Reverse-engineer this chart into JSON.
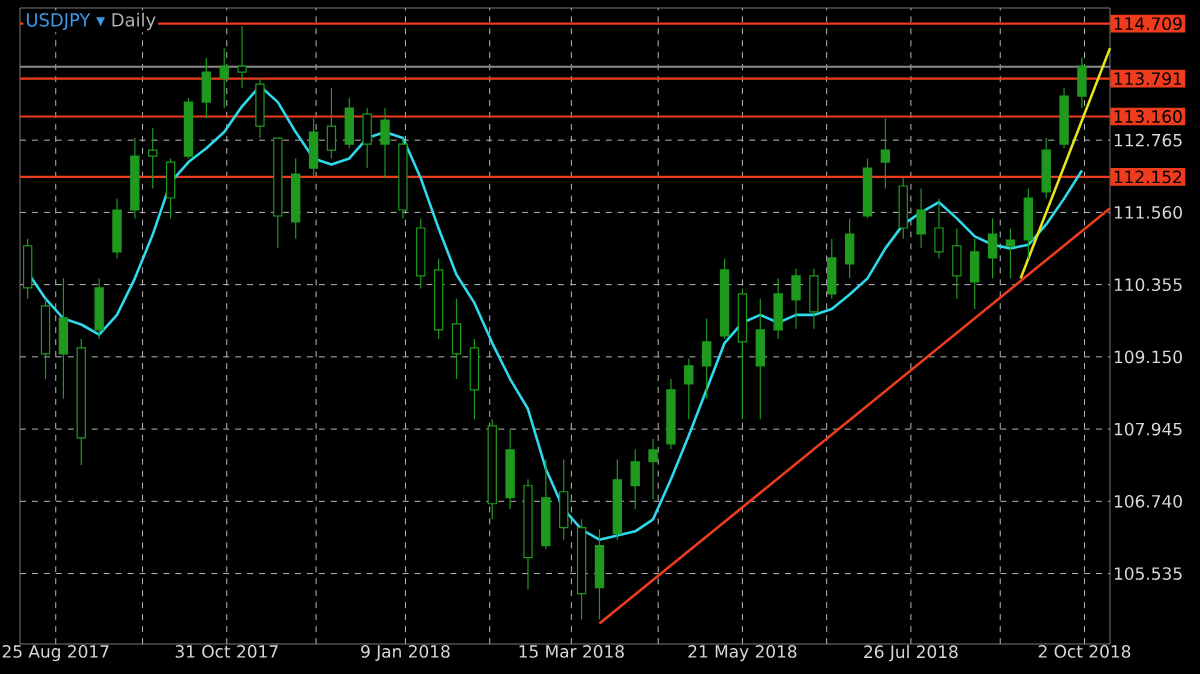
{
  "chart_data": {
    "type": "candlestick",
    "title": "USDJPY ▾",
    "subtitle": "Daily",
    "color": "#1f9a1f",
    "x": [
      "2017-08-14",
      "2017-08-21",
      "2017-08-28",
      "2017-09-04",
      "2017-09-11",
      "2017-09-18",
      "2017-09-25",
      "2017-10-02",
      "2017-10-09",
      "2017-10-16",
      "2017-10-23",
      "2017-10-30",
      "2017-11-06",
      "2017-11-13",
      "2017-11-20",
      "2017-11-27",
      "2017-12-04",
      "2017-12-11",
      "2017-12-18",
      "2017-12-25",
      "2018-01-01",
      "2018-01-08",
      "2018-01-15",
      "2018-01-22",
      "2018-01-29",
      "2018-02-05",
      "2018-02-12",
      "2018-02-19",
      "2018-02-26",
      "2018-03-05",
      "2018-03-12",
      "2018-03-19",
      "2018-03-26",
      "2018-04-02",
      "2018-04-09",
      "2018-04-16",
      "2018-04-23",
      "2018-04-30",
      "2018-05-07",
      "2018-05-14",
      "2018-05-21",
      "2018-05-28",
      "2018-06-04",
      "2018-06-11",
      "2018-06-18",
      "2018-06-25",
      "2018-07-02",
      "2018-07-09",
      "2018-07-16",
      "2018-07-23",
      "2018-07-30",
      "2018-08-06",
      "2018-08-13",
      "2018-08-20",
      "2018-08-27",
      "2018-09-03",
      "2018-09-10",
      "2018-09-17",
      "2018-09-24",
      "2018-10-01"
    ],
    "ohlc": [
      [
        111.0,
        111.12,
        110.12,
        110.3
      ],
      [
        110.0,
        110.12,
        108.78,
        109.2
      ],
      [
        109.2,
        110.46,
        108.45,
        109.8
      ],
      [
        109.3,
        109.45,
        107.34,
        107.8
      ],
      [
        109.6,
        110.46,
        109.45,
        110.3
      ],
      [
        110.9,
        111.79,
        110.79,
        111.6
      ],
      [
        111.6,
        112.8,
        111.46,
        112.5
      ],
      [
        112.6,
        112.97,
        111.96,
        112.5
      ],
      [
        112.4,
        112.46,
        111.46,
        111.8
      ],
      [
        112.5,
        113.47,
        112.46,
        113.4
      ],
      [
        113.4,
        114.14,
        113.13,
        113.9
      ],
      [
        113.8,
        114.3,
        113.3,
        114.0
      ],
      [
        114.0,
        114.67,
        113.64,
        113.9
      ],
      [
        113.7,
        113.8,
        112.8,
        113.0
      ],
      [
        112.8,
        112.8,
        110.96,
        111.5
      ],
      [
        111.4,
        112.46,
        111.12,
        112.2
      ],
      [
        112.3,
        113.13,
        112.13,
        112.9
      ],
      [
        113.0,
        113.64,
        112.46,
        112.6
      ],
      [
        112.7,
        113.47,
        112.63,
        113.3
      ],
      [
        113.2,
        113.3,
        112.3,
        112.7
      ],
      [
        112.7,
        113.3,
        112.13,
        113.1
      ],
      [
        112.7,
        112.8,
        111.46,
        111.6
      ],
      [
        111.3,
        111.46,
        110.29,
        110.5
      ],
      [
        110.6,
        110.79,
        109.45,
        109.6
      ],
      [
        109.7,
        110.12,
        108.78,
        109.2
      ],
      [
        109.3,
        109.45,
        108.11,
        108.6
      ],
      [
        108.0,
        108.11,
        106.44,
        106.7
      ],
      [
        106.8,
        107.94,
        106.61,
        107.6
      ],
      [
        107.0,
        107.11,
        105.27,
        105.8
      ],
      [
        106.0,
        107.44,
        105.94,
        106.8
      ],
      [
        106.9,
        107.44,
        106.1,
        106.3
      ],
      [
        106.3,
        106.44,
        104.77,
        105.2
      ],
      [
        105.3,
        106.27,
        104.77,
        106.0
      ],
      [
        106.2,
        107.44,
        106.1,
        107.1
      ],
      [
        107.0,
        107.61,
        106.61,
        107.4
      ],
      [
        107.4,
        107.78,
        106.77,
        107.6
      ],
      [
        107.7,
        108.78,
        107.61,
        108.6
      ],
      [
        108.7,
        109.12,
        108.11,
        109.0
      ],
      [
        109.0,
        109.79,
        108.45,
        109.4
      ],
      [
        109.5,
        110.79,
        109.45,
        110.6
      ],
      [
        110.2,
        110.29,
        108.11,
        109.4
      ],
      [
        109.0,
        110.12,
        108.11,
        109.6
      ],
      [
        109.6,
        110.46,
        109.45,
        110.2
      ],
      [
        110.1,
        110.62,
        109.62,
        110.5
      ],
      [
        110.5,
        110.62,
        109.62,
        109.9
      ],
      [
        110.2,
        111.12,
        110.12,
        110.8
      ],
      [
        110.7,
        111.46,
        110.46,
        111.2
      ],
      [
        111.5,
        112.46,
        111.46,
        112.3
      ],
      [
        112.4,
        113.13,
        111.96,
        112.6
      ],
      [
        112.0,
        112.13,
        111.12,
        111.3
      ],
      [
        111.2,
        111.96,
        110.96,
        111.6
      ],
      [
        111.3,
        111.79,
        110.79,
        110.9
      ],
      [
        111.0,
        111.29,
        110.12,
        110.5
      ],
      [
        110.4,
        111.12,
        109.95,
        110.9
      ],
      [
        110.8,
        111.46,
        110.46,
        111.2
      ],
      [
        111.0,
        111.29,
        110.46,
        111.1
      ],
      [
        111.1,
        111.96,
        110.79,
        111.8
      ],
      [
        111.9,
        112.8,
        111.79,
        112.6
      ],
      [
        112.7,
        113.64,
        112.63,
        113.5
      ],
      [
        113.5,
        114.14,
        113.3,
        114.0
      ]
    ],
    "series": [
      {
        "type": "line",
        "color": "#2fd8ea",
        "x": [
          "2017-08-14",
          "2017-08-21",
          "2017-08-28",
          "2017-09-04",
          "2017-09-11",
          "2017-09-18",
          "2017-09-25",
          "2017-10-02",
          "2017-10-09",
          "2017-10-16",
          "2017-10-23",
          "2017-10-30",
          "2017-11-06",
          "2017-11-13",
          "2017-11-20",
          "2017-11-27",
          "2017-12-04",
          "2017-12-11",
          "2017-12-18",
          "2017-12-25",
          "2018-01-01",
          "2018-01-08",
          "2018-01-15",
          "2018-01-22",
          "2018-01-29",
          "2018-02-05",
          "2018-02-12",
          "2018-02-19",
          "2018-02-26",
          "2018-03-05",
          "2018-03-12",
          "2018-03-19",
          "2018-03-26",
          "2018-04-02",
          "2018-04-09",
          "2018-04-16",
          "2018-04-23",
          "2018-04-30",
          "2018-05-07",
          "2018-05-14",
          "2018-05-21",
          "2018-05-28",
          "2018-06-04",
          "2018-06-11",
          "2018-06-18",
          "2018-06-25",
          "2018-07-02",
          "2018-07-09",
          "2018-07-16",
          "2018-07-23",
          "2018-07-30",
          "2018-08-06",
          "2018-08-13",
          "2018-08-20",
          "2018-08-27",
          "2018-09-03",
          "2018-09-10",
          "2018-09-17",
          "2018-09-24",
          "2018-10-01"
        ],
        "values": [
          110.56,
          110.12,
          109.79,
          109.69,
          109.52,
          109.85,
          110.46,
          111.19,
          112.06,
          112.4,
          112.63,
          112.9,
          113.33,
          113.67,
          113.4,
          112.9,
          112.46,
          112.36,
          112.46,
          112.8,
          112.9,
          112.8,
          112.13,
          111.29,
          110.52,
          110.05,
          109.38,
          108.78,
          108.28,
          107.28,
          106.61,
          106.27,
          106.1,
          106.17,
          106.24,
          106.44,
          107.11,
          107.84,
          108.61,
          109.38,
          109.72,
          109.85,
          109.72,
          109.85,
          109.85,
          109.95,
          110.19,
          110.46,
          110.96,
          111.36,
          111.56,
          111.73,
          111.46,
          111.16,
          111.02,
          110.96,
          111.02,
          111.36,
          111.79,
          112.26
        ]
      },
      {
        "type": "line",
        "color": "#f03c1e",
        "x": [
          "2018-03-26",
          "2018-10-12"
        ],
        "values": [
          104.7,
          111.63
        ]
      },
      {
        "type": "line",
        "color": "#e8e41c",
        "x": [
          "2018-09-07",
          "2018-10-12"
        ],
        "values": [
          110.46,
          114.3
        ]
      }
    ],
    "ref_lines": [
      {
        "axis": "y",
        "value": 114.709,
        "label": "114.709",
        "color": "#f03c1e"
      },
      {
        "axis": "y",
        "value": 113.99,
        "color": "#8a8a8a"
      },
      {
        "axis": "y",
        "value": 113.791,
        "label": "113.791",
        "color": "#f03c1e"
      },
      {
        "axis": "y",
        "value": 113.16,
        "label": "113.160",
        "color": "#f03c1e"
      },
      {
        "axis": "y",
        "value": 112.152,
        "label": "112.152",
        "color": "#f03c1e"
      }
    ],
    "xlim": [
      "2017-08-11",
      "2018-10-12"
    ],
    "xticks": [
      {
        "value": "2017-08-25",
        "label": "25 Aug 2017"
      },
      {
        "value": "2017-09-28",
        "label": null
      },
      {
        "value": "2017-10-31",
        "label": "31 Oct 2017"
      },
      {
        "value": "2017-12-05",
        "label": null
      },
      {
        "value": "2018-01-09",
        "label": "9 Jan 2018"
      },
      {
        "value": "2018-02-11",
        "label": null
      },
      {
        "value": "2018-03-15",
        "label": "15 Mar 2018"
      },
      {
        "value": "2018-04-18",
        "label": null
      },
      {
        "value": "2018-05-21",
        "label": "21 May 2018"
      },
      {
        "value": "2018-06-23",
        "label": null
      },
      {
        "value": "2018-07-26",
        "label": "26 Jul 2018"
      },
      {
        "value": "2018-08-30",
        "label": null
      },
      {
        "value": "2018-10-02",
        "label": "2 Oct 2018"
      }
    ],
    "ylim": [
      104.36,
      114.97
    ],
    "yticks": [
      105.535,
      {
        "value": 106.74,
        "label": "106.740"
      },
      107.945,
      {
        "value": 109.15,
        "label": "109.150"
      },
      110.355,
      {
        "value": 111.56,
        "label": "111.560"
      },
      112.765
    ],
    "grid": true
  }
}
